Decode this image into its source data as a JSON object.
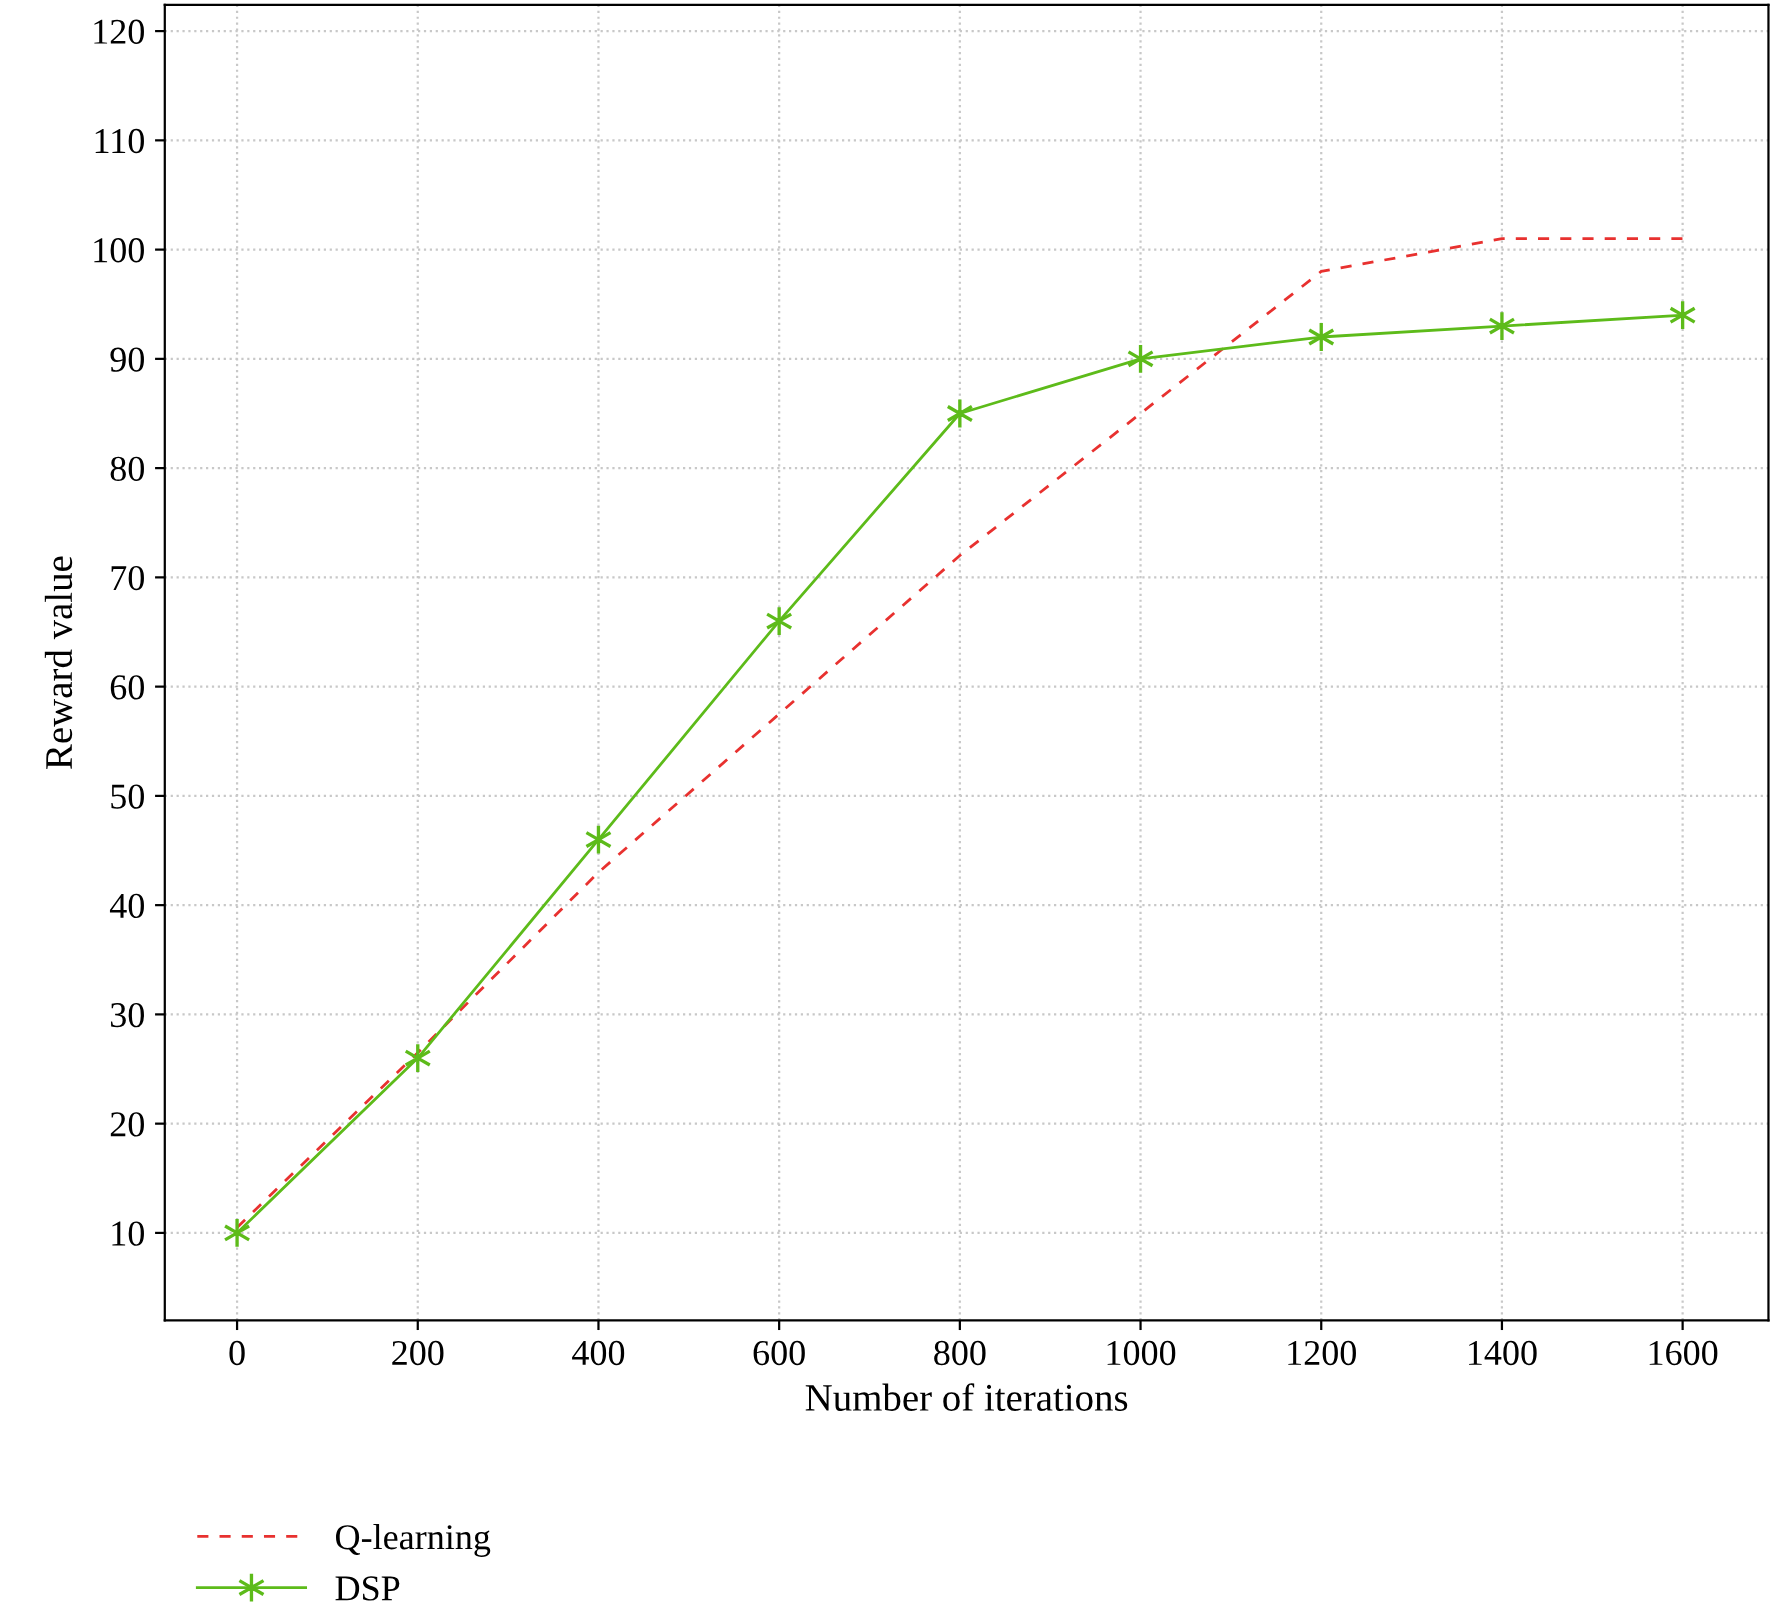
{
  "chart_data": {
    "type": "line",
    "xlabel": "Number of iterations",
    "ylabel": "Reward value",
    "x": [
      0,
      200,
      400,
      600,
      800,
      1000,
      1200,
      1400,
      1600
    ],
    "series": [
      {
        "name": "Q-learning",
        "color": "#e8312f",
        "line_style": "dashed",
        "marker": "none",
        "values": [
          10.5,
          26.5,
          43,
          57.5,
          72,
          85,
          98,
          101,
          101
        ]
      },
      {
        "name": "DSP",
        "color": "#5dbb1a",
        "line_style": "solid",
        "marker": "cross",
        "values": [
          10,
          26,
          46,
          66,
          85,
          90,
          92,
          93,
          94
        ]
      }
    ],
    "xlim": [
      -80,
      1695
    ],
    "ylim": [
      2,
      122.4
    ],
    "xticks": [
      0,
      200,
      400,
      600,
      800,
      1000,
      1200,
      1400,
      1600
    ],
    "yticks": [
      10,
      20,
      30,
      40,
      50,
      60,
      70,
      80,
      90,
      100,
      110,
      120
    ],
    "grid": true,
    "legend": "bottom left"
  }
}
